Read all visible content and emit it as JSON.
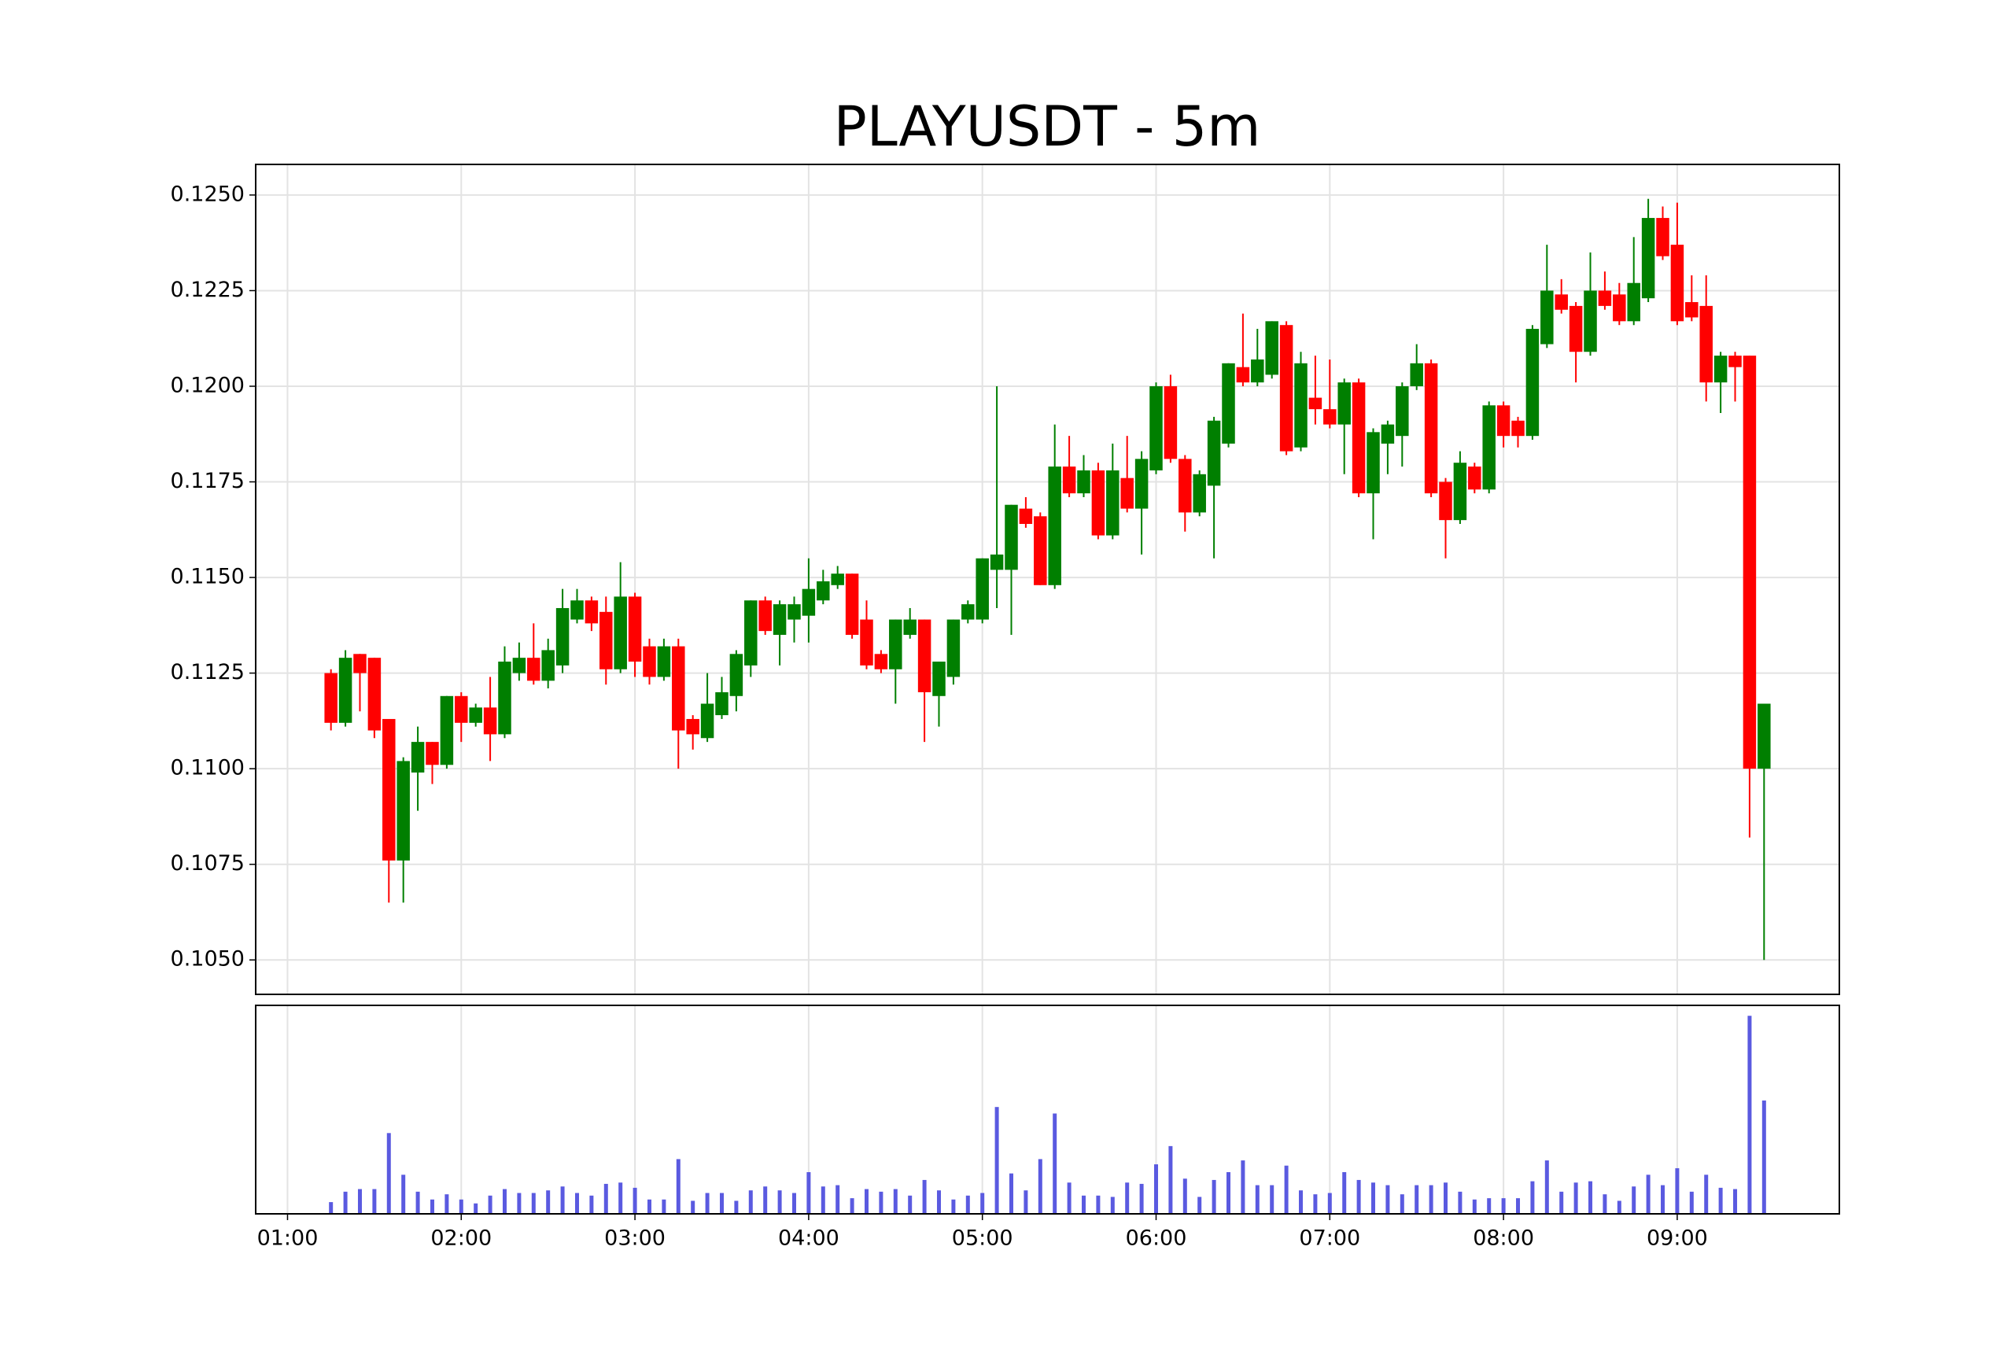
{
  "chart_data": [
    {
      "type": "candlestick",
      "title": "PLAYUSDT - 5m",
      "x": [
        "01:15",
        "01:20",
        "01:25",
        "01:30",
        "01:35",
        "01:40",
        "01:45",
        "01:50",
        "01:55",
        "02:00",
        "02:05",
        "02:10",
        "02:15",
        "02:20",
        "02:25",
        "02:30",
        "02:35",
        "02:40",
        "02:45",
        "02:50",
        "02:55",
        "03:00",
        "03:05",
        "03:10",
        "03:15",
        "03:20",
        "03:25",
        "03:30",
        "03:35",
        "03:40",
        "03:45",
        "03:50",
        "03:55",
        "04:00",
        "04:05",
        "04:10",
        "04:15",
        "04:20",
        "04:25",
        "04:30",
        "04:35",
        "04:40",
        "04:45",
        "04:50",
        "04:55",
        "05:00",
        "05:05",
        "05:10",
        "05:15",
        "05:20",
        "05:25",
        "05:30",
        "05:35",
        "05:40",
        "05:45",
        "05:50",
        "05:55",
        "06:00",
        "06:05",
        "06:10",
        "06:15",
        "06:20",
        "06:25",
        "06:30",
        "06:35",
        "06:40",
        "06:45",
        "06:50",
        "06:55",
        "07:00",
        "07:05",
        "07:10",
        "07:15",
        "07:20",
        "07:25",
        "07:30",
        "07:35",
        "07:40",
        "07:45",
        "07:50",
        "07:55",
        "08:00",
        "08:05",
        "08:10",
        "08:15",
        "08:20",
        "08:25",
        "08:30",
        "08:35",
        "08:40",
        "08:45",
        "08:50",
        "08:55",
        "09:00",
        "09:05",
        "09:10",
        "09:15",
        "09:20",
        "09:25",
        "09:30"
      ],
      "open": [
        0.1125,
        0.1112,
        0.113,
        0.1129,
        0.1113,
        0.1076,
        0.1099,
        0.1107,
        0.1101,
        0.1119,
        0.1112,
        0.1116,
        0.1109,
        0.1125,
        0.1129,
        0.1123,
        0.1127,
        0.1139,
        0.1144,
        0.1141,
        0.1126,
        0.1145,
        0.1132,
        0.1124,
        0.1132,
        0.1113,
        0.1108,
        0.1114,
        0.1119,
        0.1127,
        0.1144,
        0.1135,
        0.1139,
        0.114,
        0.1144,
        0.1148,
        0.1151,
        0.1139,
        0.113,
        0.1126,
        0.1135,
        0.1139,
        0.1119,
        0.1124,
        0.1139,
        0.1139,
        0.1152,
        0.1152,
        0.1168,
        0.1166,
        0.1148,
        0.1179,
        0.1172,
        0.1178,
        0.1161,
        0.1176,
        0.1168,
        0.1178,
        0.12,
        0.1181,
        0.1167,
        0.1174,
        0.1185,
        0.1205,
        0.1201,
        0.1203,
        0.1216,
        0.1184,
        0.1197,
        0.1194,
        0.119,
        0.1201,
        0.1172,
        0.1185,
        0.1187,
        0.12,
        0.1206,
        0.1175,
        0.1165,
        0.1179,
        0.1173,
        0.1195,
        0.1191,
        0.1187,
        0.1211,
        0.1224,
        0.1221,
        0.1209,
        0.1225,
        0.1224,
        0.1217,
        0.1223,
        0.1244,
        0.1237,
        0.1222,
        0.1221,
        0.1201,
        0.1208,
        0.1208,
        0.11
      ],
      "high": [
        0.1126,
        0.1131,
        0.113,
        0.1129,
        0.1113,
        0.1103,
        0.1111,
        0.1107,
        0.1119,
        0.112,
        0.1117,
        0.1124,
        0.1132,
        0.1133,
        0.1138,
        0.1134,
        0.1147,
        0.1147,
        0.1145,
        0.1145,
        0.1154,
        0.1146,
        0.1134,
        0.1134,
        0.1134,
        0.1114,
        0.1125,
        0.1124,
        0.1131,
        0.1144,
        0.1145,
        0.1144,
        0.1145,
        0.1155,
        0.1152,
        0.1153,
        0.1151,
        0.1144,
        0.1131,
        0.1139,
        0.1142,
        0.1139,
        0.1128,
        0.1139,
        0.1144,
        0.1155,
        0.12,
        0.1169,
        0.1171,
        0.1167,
        0.119,
        0.1187,
        0.1182,
        0.118,
        0.1185,
        0.1187,
        0.1183,
        0.1201,
        0.1203,
        0.1182,
        0.1178,
        0.1192,
        0.1206,
        0.1219,
        0.1215,
        0.1217,
        0.1217,
        0.1209,
        0.1208,
        0.1207,
        0.1202,
        0.1202,
        0.1189,
        0.1191,
        0.1201,
        0.1211,
        0.1207,
        0.1176,
        0.1183,
        0.118,
        0.1196,
        0.1196,
        0.1192,
        0.1216,
        0.1237,
        0.1228,
        0.1222,
        0.1235,
        0.123,
        0.1227,
        0.1239,
        0.1249,
        0.1247,
        0.1248,
        0.1229,
        0.1229,
        0.1209,
        0.1209,
        0.1208,
        0.1117
      ],
      "low": [
        0.111,
        0.1111,
        0.1115,
        0.1108,
        0.1065,
        0.1065,
        0.1089,
        0.1096,
        0.11,
        0.1107,
        0.1111,
        0.1102,
        0.1108,
        0.1123,
        0.1122,
        0.1121,
        0.1125,
        0.1138,
        0.1136,
        0.1122,
        0.1125,
        0.1124,
        0.1122,
        0.1123,
        0.11,
        0.1105,
        0.1107,
        0.1113,
        0.1115,
        0.1124,
        0.1135,
        0.1127,
        0.1133,
        0.1133,
        0.1143,
        0.1147,
        0.1134,
        0.1126,
        0.1125,
        0.1117,
        0.1134,
        0.1107,
        0.1111,
        0.1122,
        0.1138,
        0.1138,
        0.1142,
        0.1135,
        0.1163,
        0.1148,
        0.1147,
        0.1171,
        0.1171,
        0.116,
        0.116,
        0.1167,
        0.1156,
        0.1177,
        0.118,
        0.1162,
        0.1166,
        0.1155,
        0.1184,
        0.12,
        0.12,
        0.1202,
        0.1182,
        0.1183,
        0.119,
        0.1189,
        0.1177,
        0.1171,
        0.116,
        0.1177,
        0.1179,
        0.1199,
        0.1171,
        0.1155,
        0.1164,
        0.1172,
        0.1172,
        0.1184,
        0.1184,
        0.1186,
        0.121,
        0.1219,
        0.1201,
        0.1208,
        0.122,
        0.1216,
        0.1216,
        0.1222,
        0.1233,
        0.1216,
        0.1217,
        0.1196,
        0.1193,
        0.1196,
        0.1082,
        0.105
      ],
      "close": [
        0.1112,
        0.1129,
        0.1125,
        0.111,
        0.1076,
        0.1102,
        0.1107,
        0.1101,
        0.1119,
        0.1112,
        0.1116,
        0.1109,
        0.1128,
        0.1129,
        0.1123,
        0.1131,
        0.1142,
        0.1144,
        0.1138,
        0.1126,
        0.1145,
        0.1128,
        0.1124,
        0.1132,
        0.111,
        0.1109,
        0.1117,
        0.112,
        0.113,
        0.1144,
        0.1136,
        0.1143,
        0.1143,
        0.1147,
        0.1149,
        0.1151,
        0.1135,
        0.1127,
        0.1126,
        0.1139,
        0.1139,
        0.112,
        0.1128,
        0.1139,
        0.1143,
        0.1155,
        0.1156,
        0.1169,
        0.1164,
        0.1148,
        0.1179,
        0.1172,
        0.1178,
        0.1161,
        0.1178,
        0.1168,
        0.1181,
        0.12,
        0.1181,
        0.1167,
        0.1177,
        0.1191,
        0.1206,
        0.1201,
        0.1207,
        0.1217,
        0.1183,
        0.1206,
        0.1194,
        0.119,
        0.1201,
        0.1172,
        0.1188,
        0.119,
        0.12,
        0.1206,
        0.1172,
        0.1165,
        0.118,
        0.1173,
        0.1195,
        0.1187,
        0.1187,
        0.1215,
        0.1225,
        0.122,
        0.1209,
        0.1225,
        0.1221,
        0.1217,
        0.1227,
        0.1244,
        0.1234,
        0.1217,
        0.1218,
        0.1201,
        0.1208,
        0.1205,
        0.11,
        0.1117
      ],
      "up_color": "#007f00",
      "down_color": "#ff0000",
      "xlim": [
        "00:49",
        "09:56"
      ],
      "xticks": [
        "01:00",
        "02:00",
        "03:00",
        "04:00",
        "05:00",
        "06:00",
        "07:00",
        "08:00",
        "09:00"
      ],
      "ylim": [
        0.1041,
        0.1258
      ],
      "yticks": [
        {
          "value": 0.105,
          "label": "0.1050"
        },
        {
          "value": 0.1075,
          "label": "0.1075"
        },
        {
          "value": 0.11,
          "label": "0.1100"
        },
        {
          "value": 0.1125,
          "label": "0.1125"
        },
        {
          "value": 0.115,
          "label": "0.1150"
        },
        {
          "value": 0.1175,
          "label": "0.1175"
        },
        {
          "value": 0.12,
          "label": "0.1200"
        },
        {
          "value": 0.1225,
          "label": "0.1225"
        },
        {
          "value": 0.125,
          "label": "0.1250"
        }
      ],
      "grid": true
    },
    {
      "type": "bar",
      "color": "#5a5ae0",
      "values": [
        9,
        17,
        19,
        19,
        62,
        30,
        17,
        11,
        15,
        11,
        8,
        14,
        19,
        16,
        16,
        18,
        21,
        16,
        14,
        23,
        24,
        20,
        11,
        11,
        42,
        10,
        16,
        16,
        10,
        18,
        21,
        18,
        16,
        32,
        21,
        22,
        12,
        19,
        17,
        19,
        14,
        26,
        18,
        11,
        14,
        16,
        82,
        31,
        18,
        42,
        77,
        24,
        14,
        14,
        13,
        24,
        23,
        38,
        52,
        27,
        13,
        26,
        32,
        41,
        22,
        22,
        37,
        18,
        15,
        16,
        32,
        26,
        24,
        22,
        15,
        22,
        22,
        24,
        17,
        11,
        12,
        12,
        12,
        25,
        41,
        17,
        24,
        25,
        15,
        10,
        21,
        30,
        22,
        35,
        17,
        30,
        20,
        19,
        152,
        87
      ],
      "ylim": [
        0,
        160
      ],
      "grid": true
    }
  ]
}
